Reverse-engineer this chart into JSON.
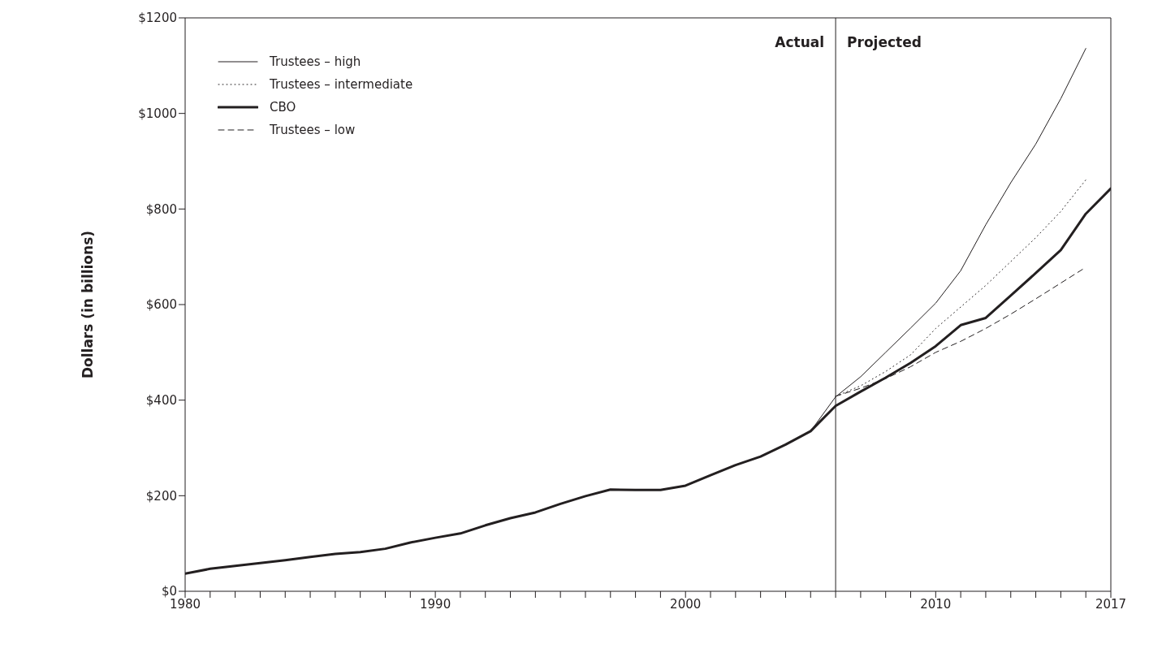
{
  "chart_data": {
    "type": "line",
    "ylabel": "Dollars (in billions)",
    "x": [
      1980,
      1981,
      1982,
      1983,
      1984,
      1985,
      1986,
      1987,
      1988,
      1989,
      1990,
      1991,
      1992,
      1993,
      1994,
      1995,
      1996,
      1997,
      1998,
      1999,
      2000,
      2001,
      2002,
      2003,
      2004,
      2005,
      2006,
      2007,
      2008,
      2009,
      2010,
      2011,
      2012,
      2013,
      2014,
      2015,
      2016,
      2017
    ],
    "series": [
      {
        "name": "Trustees – high",
        "color": "#231f20",
        "line_style": "solid",
        "x": [
          2005,
          2006,
          2007,
          2008,
          2009,
          2010,
          2011,
          2012,
          2013,
          2014,
          2015,
          2016
        ],
        "values": [
          335,
          407,
          449,
          500,
          551,
          603,
          671,
          767,
          855,
          936,
          1031,
          1136
        ]
      },
      {
        "name": "Trustees – intermediate",
        "color": "#231f20",
        "line_style": "dotted",
        "x": [
          2006,
          2007,
          2008,
          2009,
          2010,
          2011,
          2012,
          2013,
          2014,
          2015,
          2016
        ],
        "values": [
          408,
          430,
          460,
          495,
          550,
          595,
          640,
          690,
          740,
          795,
          861
        ]
      },
      {
        "name": "CBO",
        "color": "#231f20",
        "line_style": "solid",
        "values": [
          37,
          47,
          53,
          59,
          65,
          72,
          78,
          82,
          89,
          102,
          112,
          121,
          138,
          153,
          165,
          183,
          199,
          213,
          212,
          212,
          221,
          243,
          264,
          282,
          307,
          335,
          388,
          418,
          447,
          478,
          513,
          557,
          572,
          619,
          666,
          714,
          790,
          843
        ]
      },
      {
        "name": "Trustees – low",
        "color": "#231f20",
        "line_style": "dashed",
        "x": [
          2006,
          2007,
          2008,
          2009,
          2010,
          2011,
          2012,
          2013,
          2014,
          2015,
          2016
        ],
        "values": [
          408,
          425,
          445,
          470,
          500,
          523,
          550,
          580,
          612,
          645,
          678
        ]
      }
    ],
    "xlim": [
      1980,
      2017
    ],
    "xticks": [
      1980,
      {
        "value": 1981,
        "label": null
      },
      {
        "value": 1982,
        "label": null
      },
      {
        "value": 1983,
        "label": null
      },
      {
        "value": 1984,
        "label": null
      },
      {
        "value": 1985,
        "label": null
      },
      {
        "value": 1986,
        "label": null
      },
      {
        "value": 1987,
        "label": null
      },
      {
        "value": 1988,
        "label": null
      },
      {
        "value": 1989,
        "label": null
      },
      1990,
      {
        "value": 1991,
        "label": null
      },
      {
        "value": 1992,
        "label": null
      },
      {
        "value": 1993,
        "label": null
      },
      {
        "value": 1994,
        "label": null
      },
      {
        "value": 1995,
        "label": null
      },
      {
        "value": 1996,
        "label": null
      },
      {
        "value": 1997,
        "label": null
      },
      {
        "value": 1998,
        "label": null
      },
      {
        "value": 1999,
        "label": null
      },
      2000,
      {
        "value": 2001,
        "label": null
      },
      {
        "value": 2002,
        "label": null
      },
      {
        "value": 2003,
        "label": null
      },
      {
        "value": 2004,
        "label": null
      },
      {
        "value": 2005,
        "label": null
      },
      {
        "value": 2006,
        "label": null
      },
      {
        "value": 2007,
        "label": null
      },
      {
        "value": 2008,
        "label": null
      },
      {
        "value": 2009,
        "label": null
      },
      2010,
      {
        "value": 2011,
        "label": null
      },
      {
        "value": 2012,
        "label": null
      },
      {
        "value": 2013,
        "label": null
      },
      {
        "value": 2014,
        "label": null
      },
      {
        "value": 2015,
        "label": null
      },
      {
        "value": 2016,
        "label": null
      },
      2017
    ],
    "ylim": [
      0,
      1200
    ],
    "yticks": [
      {
        "value": 0,
        "label": "$0"
      },
      {
        "value": 200,
        "label": "$200"
      },
      {
        "value": 400,
        "label": "$400"
      },
      {
        "value": 600,
        "label": "$600"
      },
      {
        "value": 800,
        "label": "$800"
      },
      {
        "value": 1000,
        "label": "$1000"
      },
      {
        "value": 1200,
        "label": "$1200"
      }
    ],
    "ref_lines": [
      {
        "axis": "x",
        "value": 2006,
        "color": "#231f20"
      }
    ],
    "annotations": [
      "Actual",
      "Projected"
    ],
    "grid": false,
    "legend": "top left",
    "marker": "none"
  }
}
